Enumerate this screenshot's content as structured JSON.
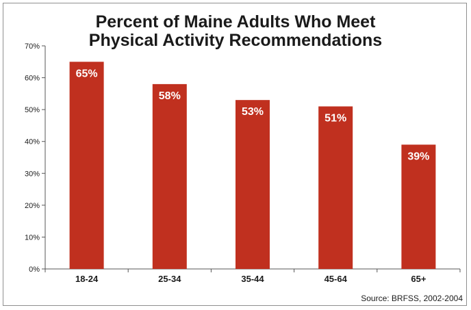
{
  "chart_data": {
    "type": "bar",
    "title_line1": "Percent of Maine Adults Who Meet",
    "title_line2": "Physical Activity Recommendations",
    "categories": [
      "18-24",
      "25-34",
      "35-44",
      "45-64",
      "65+"
    ],
    "values": [
      65,
      58,
      53,
      51,
      39
    ],
    "data_labels": [
      "65%",
      "58%",
      "53%",
      "51%",
      "39%"
    ],
    "y_ticks": [
      "0%",
      "10%",
      "20%",
      "30%",
      "40%",
      "50%",
      "60%",
      "70%"
    ],
    "ylim": [
      0,
      70
    ],
    "ytick_step": 10,
    "grid": false,
    "bar_color": "#c0301f",
    "source": "Source: BRFSS, 2002-2004"
  }
}
